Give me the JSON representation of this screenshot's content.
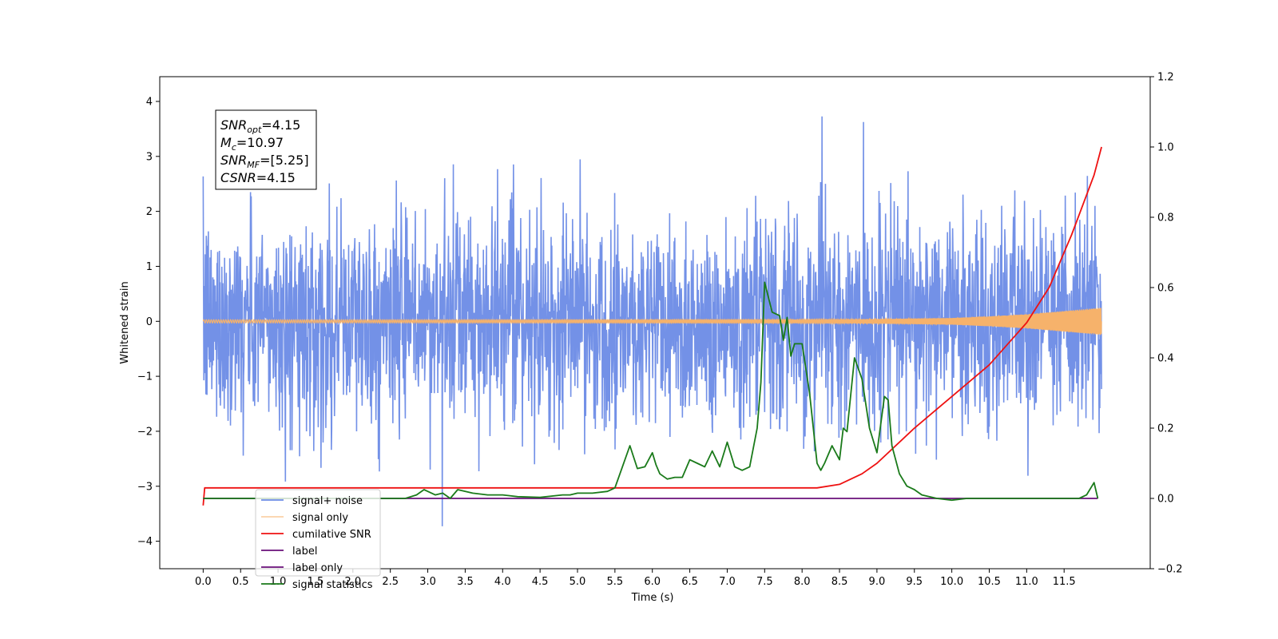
{
  "chart_data": {
    "type": "line",
    "xlabel": "Time (s)",
    "ylabel": "Whitened strain",
    "xlim": [
      -0.58,
      12.65
    ],
    "ylim": [
      -4.5,
      4.45
    ],
    "y2lim": [
      -0.2,
      1.2
    ],
    "x_ticks": [
      "0.0",
      "0.5",
      "1.0",
      "1.5",
      "2.0",
      "2.5",
      "3.0",
      "3.5",
      "4.0",
      "4.5",
      "5.0",
      "5.5",
      "6.0",
      "6.5",
      "7.0",
      "7.5",
      "8.0",
      "8.5",
      "9.0",
      "9.5",
      "10.0",
      "10.5",
      "11.0",
      "11.5"
    ],
    "y_ticks": [
      "−4",
      "−3",
      "−2",
      "−1",
      "0",
      "1",
      "2",
      "3",
      "4"
    ],
    "y2_ticks": [
      "−0.2",
      "0.0",
      "0.2",
      "0.4",
      "0.6",
      "0.8",
      "1.0",
      "1.2"
    ],
    "annotation": [
      {
        "main": "SNR",
        "sub": "opt",
        "rest": "=4.15"
      },
      {
        "main": "M",
        "sub": "c",
        "rest": "=10.97"
      },
      {
        "main": "SNR",
        "sub": "MF",
        "rest": "=[5.25]"
      },
      {
        "main": "CSNR",
        "sub": "",
        "rest": "=4.15"
      }
    ],
    "legend": {
      "location": "lower-left",
      "entries": [
        "signal+ noise",
        "signal only",
        "cumilative SNR",
        "label",
        "label only",
        "signal statistics"
      ]
    },
    "colors": {
      "noise": "#6b8be6",
      "signal": "#f6b26b",
      "csnr": "#ee1111",
      "label": "#6a0f7a",
      "stats": "#1a7a1a"
    },
    "series": [
      {
        "name": "signal+ noise",
        "axis": "left",
        "envelope": {
          "noise_std": 1.0,
          "max": 4.03,
          "min": -4.1
        }
      },
      {
        "name": "signal only",
        "axis": "left",
        "envelope_x": [
          0,
          8,
          9,
          10,
          10.5,
          11,
          11.5,
          12
        ],
        "envelope_amp": [
          0.03,
          0.03,
          0.04,
          0.06,
          0.09,
          0.13,
          0.19,
          0.25
        ]
      },
      {
        "name": "cumilative SNR",
        "axis": "right",
        "x": [
          0,
          0.02,
          8.2,
          8.5,
          8.8,
          9.0,
          9.5,
          10.0,
          10.5,
          11.0,
          11.3,
          11.6,
          11.9,
          12.0
        ],
        "y": [
          -0.02,
          0.03,
          0.03,
          0.04,
          0.07,
          0.1,
          0.2,
          0.29,
          0.38,
          0.5,
          0.6,
          0.75,
          0.92,
          1.0
        ]
      },
      {
        "name": "label",
        "axis": "right",
        "x": [
          0,
          11.95
        ],
        "y": [
          0,
          0
        ]
      },
      {
        "name": "signal statistics",
        "axis": "right",
        "x": [
          0,
          2.7,
          2.85,
          2.95,
          3.0,
          3.1,
          3.2,
          3.3,
          3.4,
          3.6,
          3.8,
          4.0,
          4.2,
          4.5,
          4.8,
          4.9,
          5.0,
          5.2,
          5.4,
          5.5,
          5.6,
          5.7,
          5.8,
          5.9,
          6.0,
          6.05,
          6.1,
          6.2,
          6.3,
          6.4,
          6.5,
          6.6,
          6.7,
          6.8,
          6.9,
          7.0,
          7.1,
          7.2,
          7.3,
          7.4,
          7.45,
          7.5,
          7.6,
          7.7,
          7.75,
          7.8,
          7.85,
          7.9,
          8.0,
          8.1,
          8.2,
          8.25,
          8.3,
          8.4,
          8.5,
          8.55,
          8.6,
          8.7,
          8.8,
          8.9,
          9.0,
          9.1,
          9.15,
          9.2,
          9.3,
          9.4,
          9.5,
          9.6,
          9.8,
          10.0,
          10.2,
          10.4,
          11.7,
          11.8,
          11.9,
          11.95
        ],
        "y": [
          0,
          0.0,
          0.01,
          0.025,
          0.02,
          0.01,
          0.015,
          0.0,
          0.025,
          0.015,
          0.01,
          0.01,
          0.005,
          0.003,
          0.01,
          0.01,
          0.015,
          0.015,
          0.02,
          0.03,
          0.09,
          0.15,
          0.085,
          0.09,
          0.13,
          0.095,
          0.07,
          0.055,
          0.06,
          0.06,
          0.11,
          0.1,
          0.09,
          0.135,
          0.09,
          0.16,
          0.09,
          0.08,
          0.09,
          0.2,
          0.33,
          0.615,
          0.53,
          0.52,
          0.45,
          0.515,
          0.405,
          0.44,
          0.44,
          0.3,
          0.1,
          0.08,
          0.1,
          0.15,
          0.11,
          0.2,
          0.19,
          0.4,
          0.34,
          0.2,
          0.13,
          0.29,
          0.28,
          0.15,
          0.07,
          0.035,
          0.025,
          0.01,
          0.0,
          -0.005,
          0.0,
          0.0,
          0.0,
          0.01,
          0.045,
          0.0
        ]
      }
    ]
  }
}
